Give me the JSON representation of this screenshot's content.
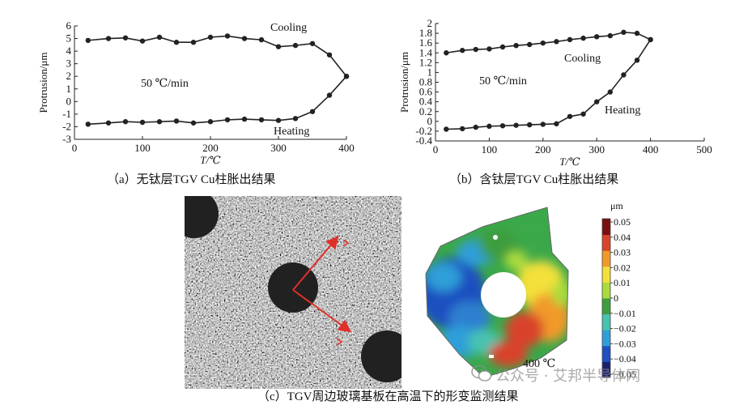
{
  "chart_data": [
    {
      "id": "a",
      "type": "line",
      "ylabel": "Protrusion/μm",
      "xlabel": "T/℃",
      "xlim": [
        0,
        400
      ],
      "ylim": [
        -3,
        6
      ],
      "xticks": [
        0,
        100,
        200,
        300,
        400
      ],
      "yticks": [
        -3,
        -2,
        -1,
        0,
        1,
        2,
        3,
        4,
        5,
        6
      ],
      "annotations": [
        "Cooling",
        "50 ℃/min",
        "Heating"
      ],
      "series": [
        {
          "name": "Heating",
          "x": [
            20,
            50,
            75,
            100,
            125,
            150,
            175,
            200,
            225,
            250,
            275,
            300,
            325,
            350,
            375,
            400
          ],
          "y": [
            -1.8,
            -1.7,
            -1.6,
            -1.65,
            -1.6,
            -1.55,
            -1.7,
            -1.6,
            -1.45,
            -1.4,
            -1.45,
            -1.5,
            -1.35,
            -0.8,
            0.5,
            2.0
          ]
        },
        {
          "name": "Cooling",
          "x": [
            400,
            375,
            350,
            325,
            300,
            275,
            250,
            225,
            200,
            175,
            150,
            125,
            100,
            75,
            50,
            20
          ],
          "y": [
            2.0,
            3.7,
            4.6,
            4.45,
            4.35,
            4.9,
            5.0,
            5.2,
            5.1,
            4.7,
            4.7,
            5.1,
            4.8,
            5.05,
            5.0,
            4.85
          ]
        }
      ],
      "caption": "（a）无钛层TGV Cu柱胀出结果"
    },
    {
      "id": "b",
      "type": "line",
      "ylabel": "Protrusion/μm",
      "xlabel": "T/℃",
      "xlim": [
        0,
        500
      ],
      "ylim": [
        -0.4,
        2.0
      ],
      "xticks": [
        0,
        100,
        200,
        300,
        400,
        500
      ],
      "yticks": [
        -0.4,
        -0.2,
        0,
        0.2,
        0.4,
        0.6,
        0.8,
        1.0,
        1.2,
        1.4,
        1.6,
        1.8,
        2.0
      ],
      "annotations": [
        "Cooling",
        "50 ℃/min",
        "Heating"
      ],
      "series": [
        {
          "name": "Heating",
          "x": [
            20,
            50,
            75,
            100,
            125,
            150,
            175,
            200,
            225,
            250,
            275,
            300,
            325,
            350,
            375,
            400
          ],
          "y": [
            -0.16,
            -0.15,
            -0.12,
            -0.1,
            -0.09,
            -0.08,
            -0.07,
            -0.06,
            -0.05,
            0.1,
            0.15,
            0.4,
            0.6,
            0.95,
            1.25,
            1.67
          ]
        },
        {
          "name": "Cooling",
          "x": [
            400,
            375,
            350,
            325,
            300,
            275,
            250,
            225,
            200,
            175,
            150,
            125,
            100,
            75,
            50,
            20
          ],
          "y": [
            1.67,
            1.8,
            1.82,
            1.75,
            1.73,
            1.7,
            1.67,
            1.63,
            1.6,
            1.57,
            1.55,
            1.52,
            1.48,
            1.47,
            1.45,
            1.4
          ]
        }
      ],
      "caption": "（b）含钛层TGV Cu柱胀出结果"
    },
    {
      "id": "c",
      "type": "heatmap",
      "colorbar_unit": "μm",
      "colorbar_ticks": [
        "0.05",
        "0.04",
        "0.03",
        "0.02",
        "0.01",
        "0",
        "−0.01",
        "−0.02",
        "−0.03",
        "−0.04",
        "−0.05"
      ],
      "annotation": "400 ℃",
      "caption": "（c）TGV周边玻璃基板在高温下的形变监测结果"
    }
  ],
  "watermark": "公众号 · 艾邦半导体网",
  "colors": {
    "line": "#222222",
    "arrow": "#e0302a",
    "colormap": [
      "#1b1f6e",
      "#1f4fc0",
      "#2f9fd8",
      "#47c3b0",
      "#3e9d3e",
      "#aadc3c",
      "#f3e03b",
      "#f09a2a",
      "#d9432a",
      "#7a1010"
    ]
  }
}
